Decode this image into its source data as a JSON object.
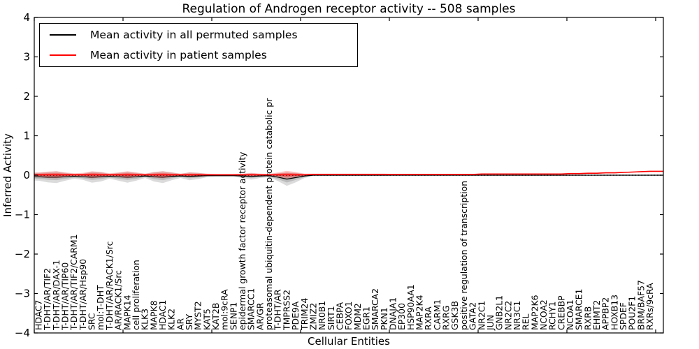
{
  "figure": {
    "title": "Regulation of Androgen receptor activity -- 508 samples",
    "background": "#ffffff"
  },
  "legend": {
    "items": [
      {
        "label": "Mean activity in all permuted samples",
        "color": "#000000"
      },
      {
        "label": "Mean activity in patient samples",
        "color": "#ff0000"
      }
    ]
  },
  "chart_data": {
    "type": "line",
    "title": "Regulation of Androgen receptor activity -- 508 samples",
    "xlabel": "Cellular Entities",
    "ylabel": "Inferred Activity",
    "ylim": [
      -4,
      4
    ],
    "ytick_values": [
      4,
      3,
      2,
      1,
      0,
      -1,
      -2,
      -3,
      -4
    ],
    "ytick_labels": [
      "4",
      "3",
      "2",
      "1",
      "0",
      "−1",
      "−2",
      "−3",
      "−4"
    ],
    "grid": false,
    "legend_position": "upper left",
    "zero_line": {
      "style": "dotted",
      "color": "#000000",
      "y": 0
    },
    "categories": [
      "HDAC7",
      "T-DHT/AR/TIF2",
      "T-DHT/AR/DAX-1",
      "T-DHT/AR/TIP60",
      "T-DHT/AR/TIF2/CARM1",
      "T-DHT/AR/Hsp90",
      "SRC",
      "mol:T-DHT",
      "T-DHT/AR/RACK1/Src",
      "AR/RACK1/Src",
      "MAPK14",
      "cell proliferation",
      "KLK3",
      "MAPK8",
      "HDAC1",
      "KLK2",
      "AR",
      "SRY",
      "MYST2",
      "KAT5",
      "KAT2B",
      "mol:9cRA",
      "SENP1",
      "epidermal growth factor receptor activity",
      "SMARCC1",
      "AR/GR",
      "proteasomal ubiquitin-dependent protein catabolic pr",
      "T-DHT/AR",
      "TMPRSS2",
      "PDE9A",
      "TRIM24",
      "ZMIZ2",
      "NR0B1",
      "SIRT1",
      "CEBPA",
      "FOXO1",
      "MDM2",
      "EGR1",
      "SMARCA2",
      "PKN1",
      "DNAJA1",
      "EP300",
      "HSP90AA1",
      "MAP2K4",
      "RXRA",
      "CARM1",
      "RXRG",
      "GSK3B",
      "positive regulation of transcription",
      "GATA2",
      "NR2C1",
      "JUN",
      "GNB2L1",
      "NR2C2",
      "NR3C1",
      "REL",
      "MAP2K6",
      "NCOA2",
      "RCHY1",
      "CREBBP",
      "NCOA1",
      "SMARCE1",
      "RXRB",
      "EHMT2",
      "APPBP2",
      "HOXB13",
      "SPDEF",
      "POU2F1",
      "BRM/BAF57",
      "RXRs/9cRA"
    ],
    "series": [
      {
        "name": "Mean activity in all permuted samples",
        "color": "#000000",
        "values": [
          -0.04,
          -0.05,
          -0.05,
          -0.04,
          -0.03,
          -0.04,
          -0.05,
          -0.04,
          -0.03,
          -0.04,
          -0.05,
          -0.04,
          -0.02,
          -0.04,
          -0.05,
          -0.03,
          -0.02,
          -0.03,
          -0.02,
          -0.01,
          -0.01,
          -0.01,
          -0.01,
          -0.02,
          -0.03,
          -0.02,
          -0.01,
          -0.05,
          -0.1,
          -0.06,
          -0.02,
          0,
          0,
          0,
          0,
          0,
          0,
          0,
          0,
          0,
          0,
          0,
          0,
          0,
          0,
          0,
          0,
          0,
          0,
          0,
          0,
          0,
          0,
          0,
          0,
          0,
          0,
          0,
          0,
          0,
          0,
          0,
          0,
          0,
          0,
          0,
          0,
          0,
          0,
          0
        ]
      },
      {
        "name": "Mean activity in patient samples",
        "color": "#ff0000",
        "values": [
          0.01,
          0.01,
          0.01,
          0.01,
          0.01,
          0.01,
          0.01,
          0.01,
          0.01,
          0.01,
          0.01,
          0.01,
          0.01,
          0.01,
          0.01,
          0.01,
          0.01,
          0.01,
          0.01,
          0.01,
          0.01,
          0.01,
          0.01,
          0.01,
          0.01,
          0.01,
          0.01,
          0.01,
          0.01,
          0.01,
          0.01,
          0.02,
          0.02,
          0.02,
          0.02,
          0.02,
          0.02,
          0.02,
          0.02,
          0.02,
          0.02,
          0.02,
          0.02,
          0.02,
          0.02,
          0.02,
          0.02,
          0.02,
          0.02,
          0.02,
          0.03,
          0.03,
          0.03,
          0.03,
          0.03,
          0.03,
          0.03,
          0.03,
          0.03,
          0.03,
          0.04,
          0.04,
          0.05,
          0.05,
          0.06,
          0.06,
          0.07,
          0.08,
          0.09,
          0.1
        ]
      }
    ],
    "violin_halfwidths": {
      "permuted": [
        0.1,
        0.13,
        0.15,
        0.1,
        0.06,
        0.08,
        0.14,
        0.12,
        0.06,
        0.1,
        0.14,
        0.1,
        0.05,
        0.12,
        0.15,
        0.1,
        0.05,
        0.1,
        0.08,
        0.04,
        0.03,
        0.03,
        0.03,
        0.05,
        0.08,
        0.05,
        0.04,
        0.1,
        0.17,
        0.12,
        0.05,
        0.02,
        0.02,
        0.02,
        0.02,
        0.02,
        0.02,
        0.02,
        0.02,
        0.02,
        0.015,
        0.015,
        0.015,
        0.015,
        0.015,
        0.015,
        0.015,
        0.015,
        0.015,
        0.015,
        0.015,
        0.015,
        0.015,
        0.015,
        0.015,
        0.015,
        0.015,
        0.015,
        0.015,
        0.015,
        0.015,
        0.015,
        0.015,
        0.015,
        0.015,
        0.015,
        0.015,
        0.015,
        0.015,
        0.015
      ],
      "patient": [
        0.06,
        0.08,
        0.09,
        0.06,
        0.04,
        0.05,
        0.09,
        0.07,
        0.04,
        0.06,
        0.09,
        0.06,
        0.03,
        0.07,
        0.09,
        0.06,
        0.03,
        0.06,
        0.05,
        0.03,
        0.02,
        0.02,
        0.02,
        0.03,
        0.05,
        0.03,
        0.02,
        0.06,
        0.1,
        0.07,
        0.03,
        0.02,
        0.02,
        0.02,
        0.02,
        0.02,
        0.02,
        0.02,
        0.02,
        0.02,
        0.012,
        0.012,
        0.012,
        0.012,
        0.012,
        0.012,
        0.012,
        0.012,
        0.012,
        0.012,
        0.012,
        0.012,
        0.012,
        0.012,
        0.012,
        0.012,
        0.012,
        0.012,
        0.012,
        0.012,
        0.012,
        0.012,
        0.012,
        0.012,
        0.012,
        0.012,
        0.012,
        0.012,
        0.012,
        0.012
      ]
    }
  }
}
